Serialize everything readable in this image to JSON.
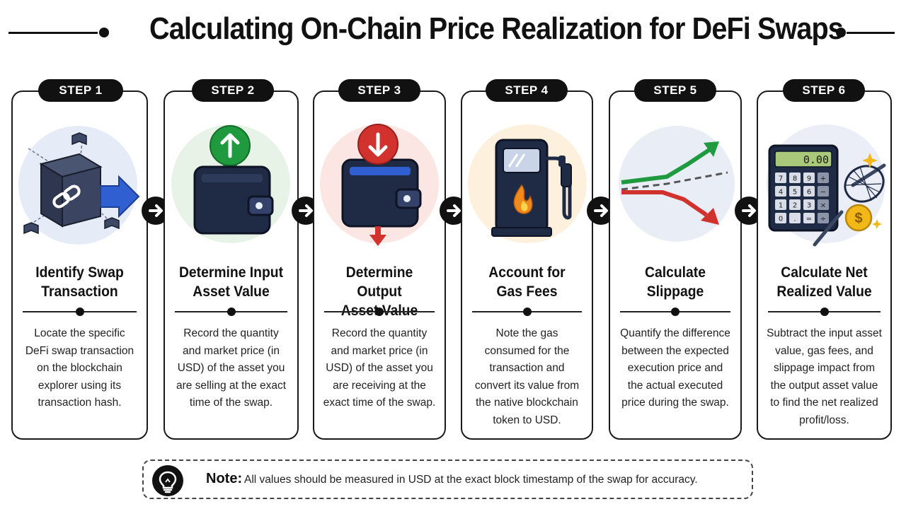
{
  "title": "Calculating On-Chain Price Realization for DeFi Swaps",
  "steps": [
    {
      "badge": "STEP 1",
      "title_line1": "Identify Swap",
      "title_line2": "Transaction",
      "description": "Locate the specific DeFi swap transaction on the blockchain explorer using its transaction hash.",
      "icon": "blockchain-cube-link-icon",
      "accent": "#2f5fd0"
    },
    {
      "badge": "STEP 2",
      "title_line1": "Determine Input",
      "title_line2": "Asset Value",
      "description": "Record the quantity and market price (in USD) of the asset you are selling at the exact time of the swap.",
      "icon": "wallet-up-arrow-icon",
      "accent": "#1f9a3f"
    },
    {
      "badge": "STEP 3",
      "title_line1": "Determine Output",
      "title_line2": "Asset Value",
      "description": "Record the quantity and market price (in USD) of the asset you are receiving at the exact time of the swap.",
      "icon": "wallet-down-arrow-icon",
      "accent": "#d2322d"
    },
    {
      "badge": "STEP 4",
      "title_line1": "Account for",
      "title_line2": "Gas Fees",
      "description": "Note the gas consumed for the transaction and convert its value from the native blockchain token to USD.",
      "icon": "gas-pump-icon",
      "accent": "#f08a1c"
    },
    {
      "badge": "STEP 5",
      "title_line1": "Calculate",
      "title_line2": "Slippage",
      "description": "Quantify the difference between the expected execution price and the actual executed price during the swap.",
      "icon": "slippage-trend-icon",
      "accent": "#1f9a3f"
    },
    {
      "badge": "STEP 6",
      "title_line1": "Calculate Net",
      "title_line2": "Realized Value",
      "description": "Subtract the input asset value, gas fees, and slippage impact from the output asset value to find the net realized profit/loss.",
      "icon": "calculator-net-coin-icon",
      "accent": "#f2b818",
      "calculator_display": "0.00",
      "calculator_keys": [
        "7",
        "8",
        "9",
        "+",
        "4",
        "5",
        "6",
        "−",
        "1",
        "2",
        "3",
        "×",
        "0",
        ".",
        "=",
        "÷"
      ],
      "coin_symbol": "$"
    }
  ],
  "note": {
    "label": "Note:",
    "text": "All values should be measured in USD at the exact block timestamp of the swap for accuracy.",
    "icon": "lightbulb-icon"
  }
}
